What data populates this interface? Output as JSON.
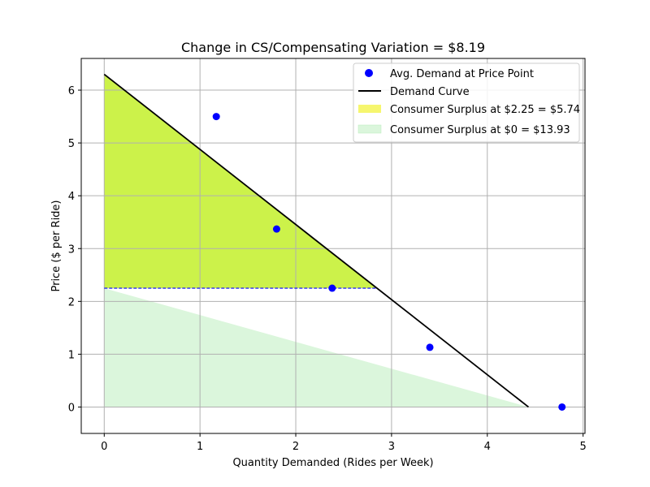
{
  "chart_data": {
    "type": "line",
    "title": "Change in CS/Compensating Variation = $8.19",
    "xlabel": "Quantity Demanded (Rides per Week)",
    "ylabel": "Price ($ per Ride)",
    "xlim": [
      -0.24,
      5.02
    ],
    "ylim": [
      -0.5,
      6.6
    ],
    "xticks": [
      0,
      1,
      2,
      3,
      4,
      5
    ],
    "yticks": [
      0,
      1,
      2,
      3,
      4,
      5,
      6
    ],
    "grid": true,
    "legend_placement": "top-right",
    "demand_curve": {
      "name": "Demand Curve",
      "x": [
        0,
        4.43
      ],
      "y": [
        6.3,
        0
      ],
      "color": "#000000"
    },
    "scatter": {
      "name": "Avg. Demand at Price Point",
      "x": [
        1.17,
        1.8,
        2.38,
        3.4,
        4.78
      ],
      "y": [
        5.5,
        3.37,
        2.25,
        1.13,
        0
      ],
      "color": "#0000ff"
    },
    "price_line": {
      "y": 2.25,
      "x": [
        0,
        2.85
      ],
      "color": "#0000ff"
    },
    "surplus_regions": [
      {
        "name": "Consumer Surplus at $2.25 = $5.74",
        "polygon_x": [
          0,
          0,
          2.85
        ],
        "polygon_y": [
          6.3,
          2.25,
          2.25
        ],
        "color": "#ccf24a"
      },
      {
        "name": "Consumer Surplus at $0 = $13.93",
        "polygon_x": [
          0,
          0,
          2.85,
          4.43
        ],
        "polygon_y": [
          2.25,
          0,
          0,
          0
        ],
        "color": "#dbf6dc"
      }
    ]
  }
}
